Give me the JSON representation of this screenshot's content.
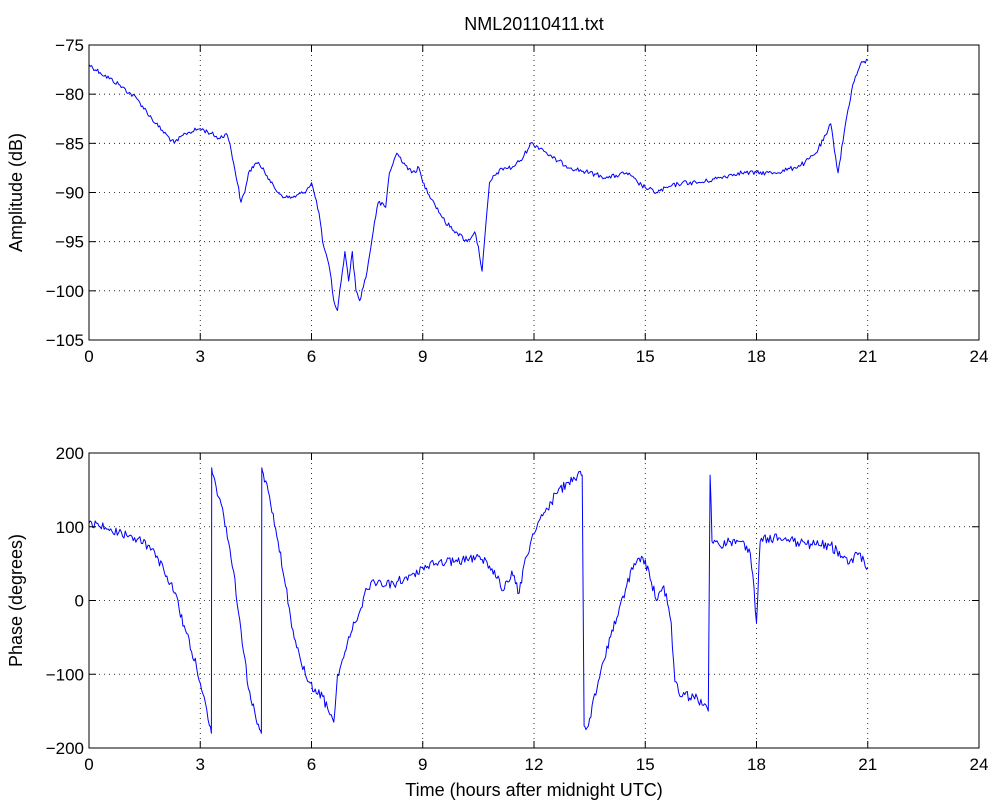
{
  "figure": {
    "title": "NML20110411.txt",
    "line_color": "#0000ff",
    "background_color": "#ffffff"
  },
  "chart_data": [
    {
      "type": "line",
      "title": "NML20110411.txt",
      "xlabel": "",
      "ylabel": "Amplitude (dB)",
      "xlim": [
        0,
        24
      ],
      "ylim": [
        -105,
        -75
      ],
      "xticks": [
        0,
        3,
        6,
        9,
        12,
        15,
        18,
        21,
        24
      ],
      "yticks": [
        -105,
        -100,
        -95,
        -90,
        -85,
        -80,
        -75
      ],
      "grid": true,
      "x": [
        0,
        0.3,
        0.8,
        1.3,
        1.8,
        2.3,
        2.6,
        3.0,
        3.3,
        3.5,
        3.7,
        3.8,
        3.9,
        4.0,
        4.1,
        4.2,
        4.3,
        4.5,
        4.7,
        4.9,
        5.1,
        5.3,
        5.5,
        5.8,
        6.0,
        6.2,
        6.3,
        6.5,
        6.6,
        6.7,
        6.8,
        6.9,
        7.0,
        7.1,
        7.2,
        7.3,
        7.5,
        7.7,
        7.8,
        8.0,
        8.1,
        8.3,
        8.5,
        8.7,
        8.9,
        9.0,
        9.3,
        9.6,
        9.9,
        10.2,
        10.4,
        10.5,
        10.6,
        10.8,
        11.0,
        11.2,
        11.4,
        11.7,
        11.9,
        12.2,
        12.5,
        13.0,
        13.5,
        14.0,
        14.5,
        14.8,
        15.0,
        15.3,
        15.6,
        16.0,
        16.5,
        17.0,
        17.5,
        18.0,
        18.5,
        19.0,
        19.3,
        19.6,
        19.9,
        20.0,
        20.2,
        20.4,
        20.6,
        20.8,
        21.0
      ],
      "y": [
        -77,
        -77.8,
        -79,
        -80.5,
        -83,
        -85,
        -84,
        -83.5,
        -84,
        -84.5,
        -84,
        -85,
        -87,
        -89,
        -91,
        -90,
        -88,
        -87,
        -87.5,
        -89,
        -90,
        -90.5,
        -90.5,
        -90,
        -89,
        -92,
        -95,
        -98,
        -101,
        -102,
        -99,
        -96,
        -99,
        -96,
        -100,
        -101,
        -98,
        -93,
        -91,
        -91.5,
        -88,
        -86,
        -87,
        -88,
        -87.5,
        -89,
        -91,
        -93,
        -94,
        -95,
        -94,
        -95.5,
        -98,
        -89,
        -88,
        -87.5,
        -87.5,
        -86.5,
        -85,
        -85.5,
        -86.5,
        -87.5,
        -88,
        -88.5,
        -88,
        -89,
        -89.5,
        -90,
        -89.5,
        -89,
        -89,
        -88.5,
        -88,
        -88,
        -88,
        -87.5,
        -87,
        -86,
        -84,
        -83,
        -88,
        -83,
        -79,
        -77,
        -76.5
      ]
    },
    {
      "type": "line",
      "title": "",
      "xlabel": "Time (hours after midnight UTC)",
      "ylabel": "Phase (degrees)",
      "xlim": [
        0,
        24
      ],
      "ylim": [
        -200,
        200
      ],
      "xticks": [
        0,
        3,
        6,
        9,
        12,
        15,
        18,
        21,
        24
      ],
      "yticks": [
        -200,
        -100,
        0,
        100,
        200
      ],
      "grid": true,
      "x": [
        0,
        0.3,
        0.8,
        1.3,
        1.7,
        2.0,
        2.3,
        2.6,
        2.9,
        3.1,
        3.25,
        3.3,
        3.31,
        3.35,
        3.5,
        3.7,
        3.9,
        4.1,
        4.3,
        4.5,
        4.6,
        4.65,
        4.66,
        4.7,
        4.9,
        5.1,
        5.3,
        5.5,
        5.7,
        5.9,
        6.1,
        6.3,
        6.5,
        6.6,
        6.7,
        6.9,
        7.1,
        7.3,
        7.5,
        7.7,
        7.9,
        8.3,
        8.7,
        9.0,
        9.3,
        9.6,
        9.9,
        10.2,
        10.5,
        10.7,
        11.0,
        11.2,
        11.4,
        11.6,
        11.8,
        12.0,
        12.3,
        12.6,
        12.9,
        13.1,
        13.25,
        13.3,
        13.35,
        13.4,
        13.5,
        13.7,
        13.9,
        14.1,
        14.3,
        14.5,
        14.7,
        14.9,
        15.1,
        15.3,
        15.5,
        15.7,
        15.8,
        16.0,
        16.3,
        16.6,
        16.7,
        16.75,
        16.8,
        17.0,
        17.3,
        17.6,
        17.8,
        17.9,
        18.0,
        18.1,
        18.3,
        18.6,
        19.0,
        19.5,
        20.0,
        20.3,
        20.5,
        20.7,
        21.0
      ],
      "y": [
        105,
        100,
        92,
        83,
        70,
        45,
        10,
        -40,
        -90,
        -130,
        -170,
        -180,
        180,
        170,
        140,
        100,
        40,
        -40,
        -120,
        -160,
        -175,
        -180,
        180,
        172,
        130,
        80,
        20,
        -40,
        -80,
        -110,
        -120,
        -130,
        -155,
        -165,
        -100,
        -70,
        -40,
        -15,
        15,
        25,
        20,
        25,
        35,
        45,
        48,
        50,
        55,
        55,
        60,
        55,
        30,
        15,
        40,
        10,
        60,
        90,
        120,
        145,
        160,
        165,
        175,
        170,
        -170,
        -175,
        -160,
        -120,
        -80,
        -40,
        -10,
        20,
        50,
        60,
        40,
        0,
        20,
        -30,
        -110,
        -130,
        -130,
        -140,
        -150,
        170,
        80,
        75,
        80,
        80,
        70,
        35,
        -30,
        80,
        85,
        85,
        80,
        75,
        75,
        60,
        50,
        65,
        45
      ]
    }
  ]
}
